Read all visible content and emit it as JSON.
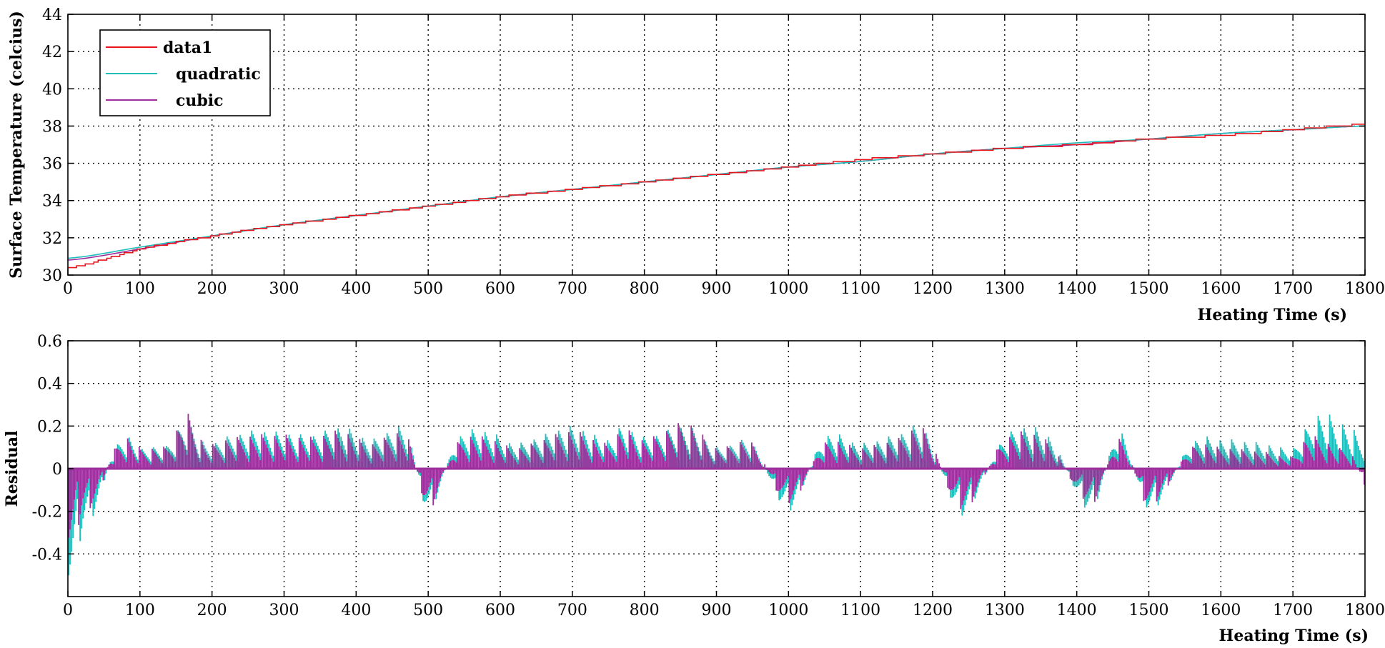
{
  "colors": {
    "data1": "#e8141c",
    "quadratic": "#1fbcbc",
    "cubic": "#9c2f9c",
    "zero_line": "#9c2f9c"
  },
  "chart_data": [
    {
      "type": "line",
      "xlabel": "Heating Time (s)",
      "ylabel": "Surface Temperature (celcius)",
      "xlim": [
        0,
        1800
      ],
      "ylim": [
        30,
        44
      ],
      "grid": true,
      "legend_position": "top-left",
      "x_ticks": [
        "0",
        "100",
        "200",
        "300",
        "400",
        "500",
        "600",
        "700",
        "800",
        "900",
        "1000",
        "1100",
        "1200",
        "1300",
        "1400",
        "1500",
        "1600",
        "1700",
        "1800"
      ],
      "y_ticks": [
        "30",
        "32",
        "34",
        "36",
        "38",
        "40",
        "42",
        "44"
      ],
      "x": [
        0,
        100,
        200,
        300,
        400,
        500,
        600,
        700,
        800,
        900,
        1000,
        1100,
        1200,
        1300,
        1400,
        1500,
        1600,
        1700,
        1800
      ],
      "series": [
        {
          "name": "data1",
          "values": [
            30.4,
            31.4,
            32.1,
            32.7,
            33.2,
            33.7,
            34.2,
            34.6,
            35.0,
            35.4,
            35.8,
            36.2,
            36.5,
            36.8,
            37.0,
            37.3,
            37.5,
            37.8,
            38.1
          ]
        },
        {
          "name": "quadratic",
          "values": [
            30.9,
            31.5,
            32.1,
            32.7,
            33.2,
            33.7,
            34.2,
            34.6,
            35.0,
            35.4,
            35.8,
            36.1,
            36.5,
            36.8,
            37.1,
            37.3,
            37.6,
            37.8,
            38.0
          ]
        },
        {
          "name": "cubic",
          "values": [
            30.8,
            31.4,
            32.1,
            32.7,
            33.2,
            33.7,
            34.2,
            34.6,
            35.0,
            35.4,
            35.8,
            36.1,
            36.5,
            36.8,
            37.0,
            37.3,
            37.6,
            37.8,
            38.0
          ]
        }
      ]
    },
    {
      "type": "bar",
      "xlabel": "Heating Time (s)",
      "ylabel": "Residual",
      "xlim": [
        0,
        1800
      ],
      "ylim": [
        -0.6,
        0.6
      ],
      "grid": true,
      "x_ticks": [
        "0",
        "100",
        "200",
        "300",
        "400",
        "500",
        "600",
        "700",
        "800",
        "900",
        "1000",
        "1100",
        "1200",
        "1300",
        "1400",
        "1500",
        "1600",
        "1700",
        "1800"
      ],
      "y_ticks": [
        "-0.4",
        "-0.2",
        "0",
        "0.2",
        "0.4",
        "0.6"
      ],
      "x": [
        5,
        20,
        40,
        60,
        80,
        100,
        120,
        140,
        165,
        190,
        220,
        260,
        300,
        340,
        380,
        420,
        470,
        500,
        540,
        580,
        620,
        660,
        700,
        750,
        770,
        800,
        860,
        900,
        950,
        1000,
        1050,
        1100,
        1150,
        1190,
        1240,
        1300,
        1360,
        1420,
        1460,
        1500,
        1560,
        1600,
        1660,
        1700,
        1720,
        1740,
        1760,
        1780,
        1800
      ],
      "series": [
        {
          "name": "quadratic",
          "values": [
            -0.52,
            -0.3,
            -0.2,
            0.06,
            0.15,
            0.1,
            0.1,
            0.12,
            0.22,
            0.12,
            0.15,
            0.18,
            0.17,
            0.16,
            0.2,
            0.14,
            0.18,
            -0.2,
            0.14,
            0.18,
            0.12,
            0.16,
            0.2,
            0.14,
            0.2,
            0.15,
            0.2,
            0.1,
            0.12,
            -0.2,
            0.15,
            0.12,
            0.16,
            0.18,
            -0.22,
            0.15,
            0.16,
            -0.2,
            0.18,
            -0.2,
            0.12,
            0.14,
            0.12,
            0.1,
            0.2,
            0.27,
            0.23,
            0.2,
            0.12
          ]
        },
        {
          "name": "cubic",
          "values": [
            -0.4,
            -0.22,
            -0.15,
            0.06,
            0.15,
            0.1,
            0.1,
            0.12,
            0.26,
            0.12,
            0.14,
            0.16,
            0.16,
            0.15,
            0.18,
            0.12,
            0.16,
            -0.19,
            0.12,
            0.15,
            0.1,
            0.14,
            0.18,
            0.12,
            0.19,
            0.14,
            0.22,
            0.1,
            0.12,
            -0.17,
            0.12,
            0.1,
            0.14,
            0.18,
            -0.2,
            0.14,
            0.13,
            -0.17,
            0.14,
            -0.18,
            0.1,
            0.1,
            0.08,
            0.06,
            0.15,
            0.14,
            0.1,
            0.08,
            -0.08
          ]
        }
      ]
    }
  ]
}
